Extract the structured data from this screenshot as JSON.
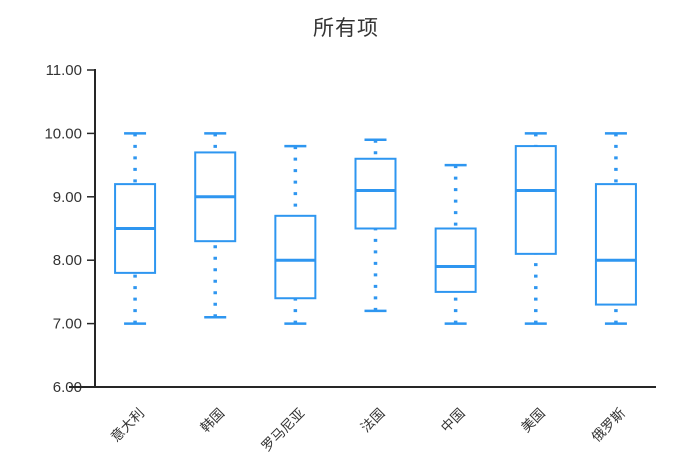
{
  "window": {
    "background": "#ffffff"
  },
  "chart_data": {
    "type": "boxplot",
    "title": "所有项",
    "subtitle": "",
    "xlabel": "",
    "ylabel": "",
    "legend": "none",
    "grid": false,
    "ylim": [
      6,
      11
    ],
    "yticks": [
      {
        "value": 6,
        "label": "6.00"
      },
      {
        "value": 7,
        "label": "7.00"
      },
      {
        "value": 8,
        "label": "8.00"
      },
      {
        "value": 9,
        "label": "9.00"
      },
      {
        "value": 10,
        "label": "10.00"
      },
      {
        "value": 11,
        "label": "11.00"
      }
    ],
    "categories": [
      "意大利",
      "韩国",
      "罗马尼亚",
      "法国",
      "中国",
      "美国",
      "俄罗斯"
    ],
    "series": [
      {
        "name": "所有项",
        "boxes": [
          {
            "category": "意大利",
            "min": 7.0,
            "q1": 7.8,
            "median": 8.5,
            "q3": 9.2,
            "max": 10.0
          },
          {
            "category": "韩国",
            "min": 7.1,
            "q1": 8.3,
            "median": 9.0,
            "q3": 9.7,
            "max": 10.0
          },
          {
            "category": "罗马尼亚",
            "min": 7.0,
            "q1": 7.4,
            "median": 8.0,
            "q3": 8.7,
            "max": 9.8
          },
          {
            "category": "法国",
            "min": 7.2,
            "q1": 8.5,
            "median": 9.1,
            "q3": 9.6,
            "max": 9.9
          },
          {
            "category": "中国",
            "min": 7.0,
            "q1": 7.5,
            "median": 7.9,
            "q3": 8.5,
            "max": 9.5
          },
          {
            "category": "美国",
            "min": 7.0,
            "q1": 8.1,
            "median": 9.1,
            "q3": 9.8,
            "max": 10.0
          },
          {
            "category": "俄罗斯",
            "min": 7.0,
            "q1": 7.3,
            "median": 8.0,
            "q3": 9.2,
            "max": 10.0
          }
        ]
      }
    ],
    "colors": {
      "box_stroke": "#2E96F0",
      "box_fill": "#ffffff",
      "whisker": "#2E96F0",
      "axis": "#262626",
      "tick_text": "#333333",
      "title_text": "#333333"
    }
  }
}
